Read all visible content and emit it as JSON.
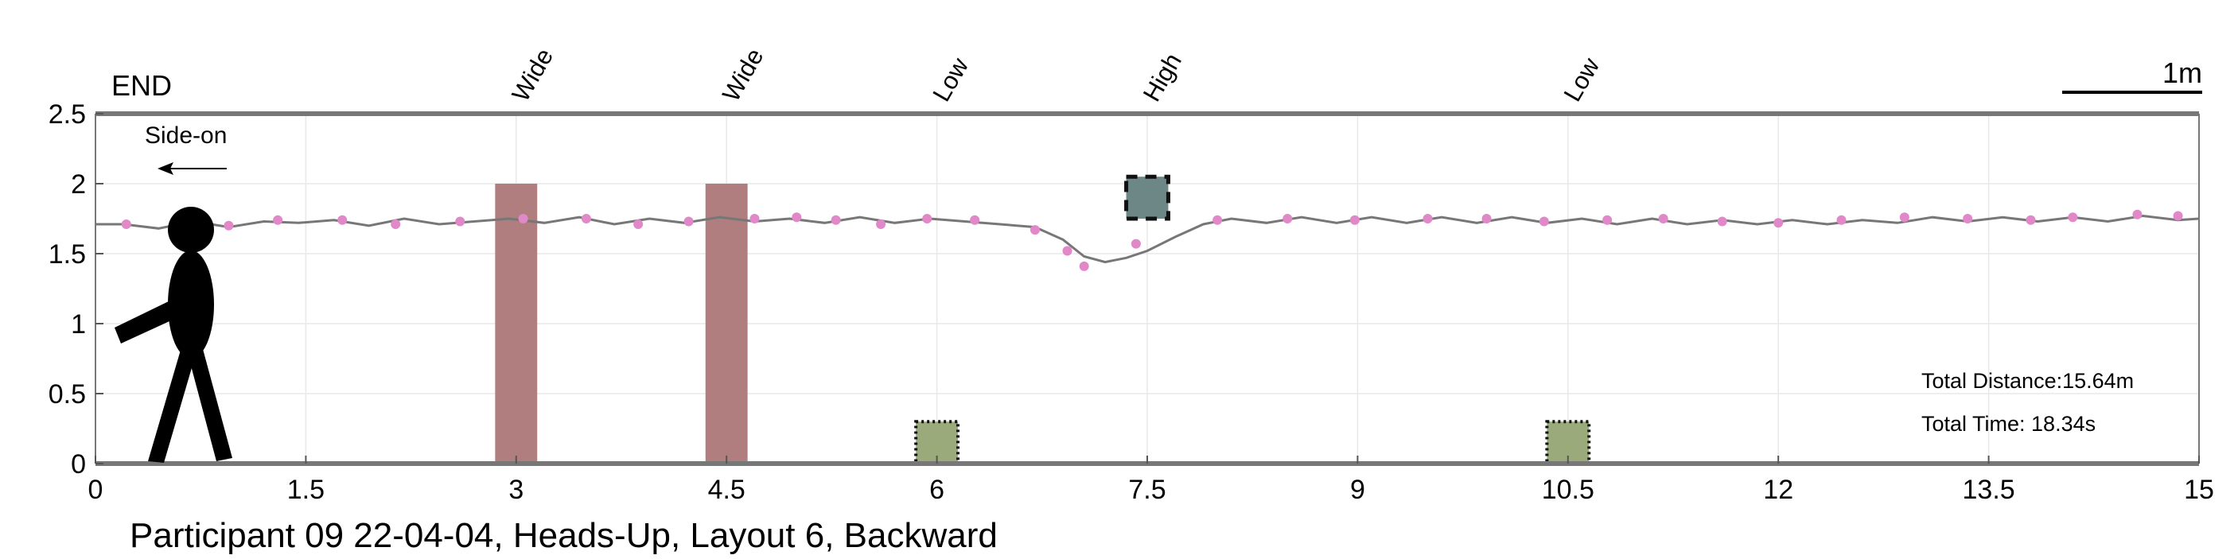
{
  "chart_data": {
    "type": "line",
    "title": "Participant 09 22-04-04, Heads-Up, Layout 6, Backward",
    "xlim": [
      0,
      15
    ],
    "ylim": [
      0,
      2.5
    ],
    "x_ticks": [
      0,
      1.5,
      3,
      4.5,
      6,
      7.5,
      9,
      10.5,
      12,
      13.5,
      15
    ],
    "y_ticks": [
      0,
      0.5,
      1,
      1.5,
      2,
      2.5
    ],
    "x_tick_labels": [
      "0",
      "1.5",
      "3",
      "4.5",
      "6",
      "7.5",
      "9",
      "10.5",
      "12",
      "13.5",
      "15"
    ],
    "y_tick_labels": [
      "0",
      "0.5",
      "1",
      "1.5",
      "2",
      "2.5"
    ],
    "grid": true,
    "end_label": "END",
    "direction_label": "Side-on",
    "scale_bar_label": "1m",
    "obstacles": [
      {
        "label": "Wide",
        "type": "wide",
        "x_start": 2.85,
        "x_end": 3.15,
        "y_start": 0,
        "y_end": 2.0,
        "color": "#b07e7e"
      },
      {
        "label": "Wide",
        "type": "wide",
        "x_start": 4.35,
        "x_end": 4.65,
        "y_start": 0,
        "y_end": 2.0,
        "color": "#b07e7e"
      },
      {
        "label": "Low",
        "type": "low",
        "x_start": 5.85,
        "x_end": 6.15,
        "y_start": 0,
        "y_end": 0.3,
        "color": "#9aaa7a"
      },
      {
        "label": "High",
        "type": "high",
        "x_start": 7.35,
        "x_end": 7.65,
        "y_start": 1.75,
        "y_end": 2.05,
        "color": "#6d8686"
      },
      {
        "label": "Low",
        "type": "low",
        "x_start": 10.35,
        "x_end": 10.65,
        "y_start": 0,
        "y_end": 0.3,
        "color": "#9aaa7a"
      }
    ],
    "series": [
      {
        "type": "line",
        "color": "#777777",
        "x": [
          0.0,
          0.2,
          0.45,
          0.7,
          0.95,
          1.2,
          1.45,
          1.7,
          1.95,
          2.2,
          2.45,
          2.7,
          2.95,
          3.2,
          3.45,
          3.7,
          3.95,
          4.2,
          4.45,
          4.7,
          4.95,
          5.2,
          5.45,
          5.7,
          5.95,
          6.2,
          6.45,
          6.7,
          6.9,
          7.05,
          7.2,
          7.35,
          7.5,
          7.7,
          7.9,
          8.1,
          8.35,
          8.6,
          8.85,
          9.1,
          9.35,
          9.6,
          9.85,
          10.1,
          10.35,
          10.6,
          10.85,
          11.1,
          11.35,
          11.6,
          11.85,
          12.1,
          12.35,
          12.6,
          12.85,
          13.1,
          13.35,
          13.6,
          13.85,
          14.1,
          14.35,
          14.6,
          14.85,
          15.0
        ],
        "y": [
          1.71,
          1.71,
          1.68,
          1.73,
          1.69,
          1.73,
          1.72,
          1.74,
          1.7,
          1.75,
          1.71,
          1.73,
          1.75,
          1.72,
          1.76,
          1.71,
          1.75,
          1.72,
          1.76,
          1.73,
          1.75,
          1.72,
          1.76,
          1.72,
          1.75,
          1.73,
          1.71,
          1.69,
          1.6,
          1.48,
          1.44,
          1.47,
          1.52,
          1.62,
          1.71,
          1.75,
          1.72,
          1.76,
          1.72,
          1.76,
          1.72,
          1.76,
          1.72,
          1.76,
          1.72,
          1.75,
          1.71,
          1.75,
          1.71,
          1.74,
          1.71,
          1.74,
          1.71,
          1.74,
          1.72,
          1.76,
          1.73,
          1.76,
          1.73,
          1.76,
          1.73,
          1.77,
          1.74,
          1.75
        ]
      },
      {
        "type": "scatter",
        "color": "#e088c8",
        "x": [
          0.22,
          0.95,
          1.3,
          1.76,
          2.14,
          2.6,
          3.05,
          3.5,
          3.87,
          4.23,
          4.7,
          5.0,
          5.28,
          5.6,
          5.93,
          6.27,
          6.7,
          6.93,
          7.05,
          7.42,
          8.0,
          8.5,
          8.98,
          9.5,
          9.92,
          10.33,
          10.78,
          11.18,
          11.6,
          12.0,
          12.45,
          12.9,
          13.35,
          13.8,
          14.1,
          14.56,
          14.85
        ],
        "y": [
          1.71,
          1.7,
          1.74,
          1.74,
          1.71,
          1.73,
          1.75,
          1.75,
          1.71,
          1.73,
          1.75,
          1.76,
          1.74,
          1.71,
          1.75,
          1.74,
          1.67,
          1.52,
          1.41,
          1.57,
          1.74,
          1.75,
          1.74,
          1.75,
          1.75,
          1.73,
          1.74,
          1.75,
          1.73,
          1.72,
          1.74,
          1.76,
          1.75,
          1.74,
          1.76,
          1.78,
          1.77
        ]
      }
    ],
    "annotations": {
      "total_distance": "Total Distance:15.64m",
      "total_time": "Total Time: 18.34s"
    }
  }
}
